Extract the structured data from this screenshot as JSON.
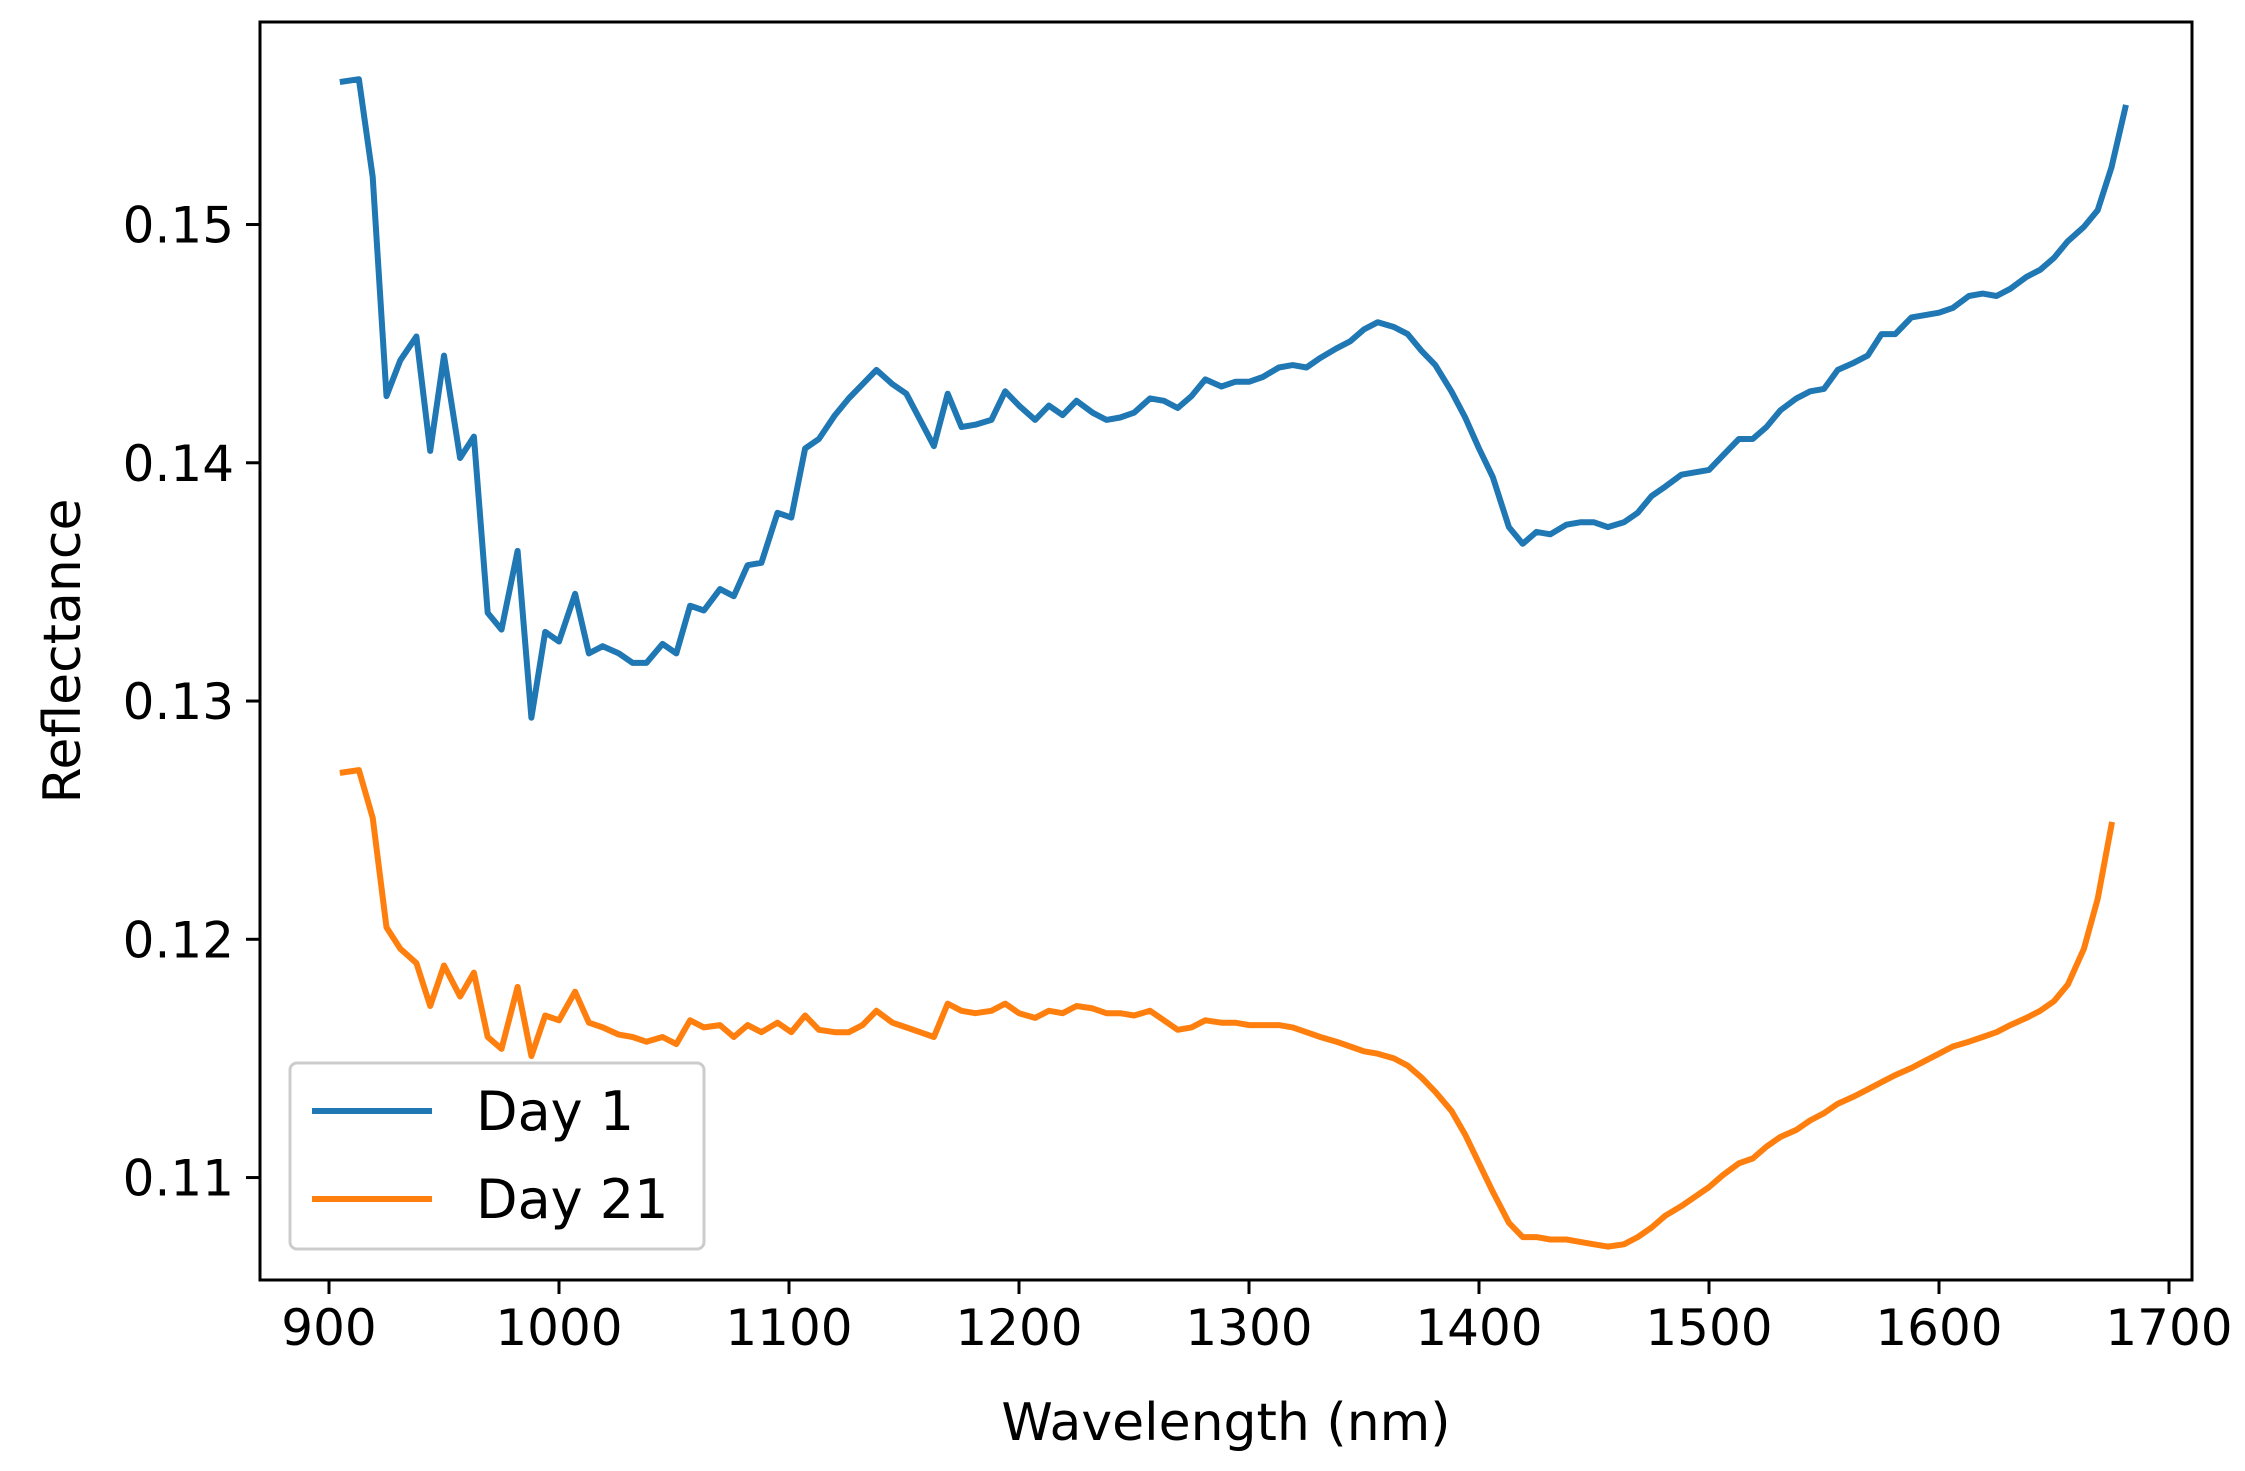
{
  "chart_data": {
    "type": "line",
    "title": "",
    "xlabel": "Wavelength (nm)",
    "ylabel": "Reflectance",
    "xlim": [
      870,
      1710
    ],
    "ylim": [
      0.1057,
      0.1585
    ],
    "xticks": [
      900,
      1000,
      1100,
      1200,
      1300,
      1400,
      1500,
      1600,
      1700
    ],
    "yticks": [
      0.11,
      0.12,
      0.13,
      0.14,
      0.15
    ],
    "xtick_labels": [
      "900",
      "1000",
      "1100",
      "1200",
      "1300",
      "1400",
      "1500",
      "1600",
      "1700"
    ],
    "ytick_labels": [
      "0.11",
      "0.12",
      "0.13",
      "0.14",
      "0.15"
    ],
    "grid": false,
    "legend_position": "lower-left",
    "series": [
      {
        "name": "Day 1",
        "color": "#1f77b4",
        "points": [
          [
            906,
            0.156
          ],
          [
            913,
            0.1561
          ],
          [
            919,
            0.152
          ],
          [
            925,
            0.1428
          ],
          [
            931,
            0.1443
          ],
          [
            938,
            0.1453
          ],
          [
            944,
            0.1405
          ],
          [
            950,
            0.1445
          ],
          [
            957,
            0.1402
          ],
          [
            963,
            0.1411
          ],
          [
            969,
            0.1337
          ],
          [
            975,
            0.133
          ],
          [
            982,
            0.1363
          ],
          [
            988,
            0.1293
          ],
          [
            994,
            0.1329
          ],
          [
            1000,
            0.1325
          ],
          [
            1007,
            0.1345
          ],
          [
            1013,
            0.132
          ],
          [
            1019,
            0.1323
          ],
          [
            1026,
            0.132
          ],
          [
            1032,
            0.1316
          ],
          [
            1038,
            0.1316
          ],
          [
            1045,
            0.1324
          ],
          [
            1051,
            0.132
          ],
          [
            1057,
            0.134
          ],
          [
            1063,
            0.1338
          ],
          [
            1070,
            0.1347
          ],
          [
            1076,
            0.1344
          ],
          [
            1082,
            0.1357
          ],
          [
            1088,
            0.1358
          ],
          [
            1095,
            0.1379
          ],
          [
            1101,
            0.1377
          ],
          [
            1107,
            0.1406
          ],
          [
            1113,
            0.141
          ],
          [
            1120,
            0.142
          ],
          [
            1126,
            0.1427
          ],
          [
            1132,
            0.1433
          ],
          [
            1138,
            0.1439
          ],
          [
            1145,
            0.1433
          ],
          [
            1151,
            0.1429
          ],
          [
            1157,
            0.1418
          ],
          [
            1163,
            0.1407
          ],
          [
            1169,
            0.1429
          ],
          [
            1175,
            0.1415
          ],
          [
            1181,
            0.1416
          ],
          [
            1188,
            0.1418
          ],
          [
            1194,
            0.143
          ],
          [
            1200,
            0.1424
          ],
          [
            1207,
            0.1418
          ],
          [
            1213,
            0.1424
          ],
          [
            1219,
            0.142
          ],
          [
            1225,
            0.1426
          ],
          [
            1232,
            0.1421
          ],
          [
            1238,
            0.1418
          ],
          [
            1244,
            0.1419
          ],
          [
            1250,
            0.1421
          ],
          [
            1257,
            0.1427
          ],
          [
            1263,
            0.1426
          ],
          [
            1269,
            0.1423
          ],
          [
            1275,
            0.1428
          ],
          [
            1281,
            0.1435
          ],
          [
            1288,
            0.1432
          ],
          [
            1294,
            0.1434
          ],
          [
            1300,
            0.1434
          ],
          [
            1306,
            0.1436
          ],
          [
            1313,
            0.144
          ],
          [
            1319,
            0.1441
          ],
          [
            1325,
            0.144
          ],
          [
            1331,
            0.1444
          ],
          [
            1338,
            0.1448
          ],
          [
            1344,
            0.1451
          ],
          [
            1350,
            0.1456
          ],
          [
            1356,
            0.1459
          ],
          [
            1363,
            0.1457
          ],
          [
            1369,
            0.1454
          ],
          [
            1375,
            0.1447
          ],
          [
            1381,
            0.1441
          ],
          [
            1388,
            0.143
          ],
          [
            1394,
            0.1419
          ],
          [
            1400,
            0.1406
          ],
          [
            1406,
            0.1394
          ],
          [
            1413,
            0.1373
          ],
          [
            1419,
            0.1366
          ],
          [
            1425,
            0.1371
          ],
          [
            1431,
            0.137
          ],
          [
            1438,
            0.1374
          ],
          [
            1444,
            0.1375
          ],
          [
            1450,
            0.1375
          ],
          [
            1456,
            0.1373
          ],
          [
            1463,
            0.1375
          ],
          [
            1469,
            0.1379
          ],
          [
            1475,
            0.1386
          ],
          [
            1481,
            0.139
          ],
          [
            1488,
            0.1395
          ],
          [
            1494,
            0.1396
          ],
          [
            1500,
            0.1397
          ],
          [
            1506,
            0.1403
          ],
          [
            1513,
            0.141
          ],
          [
            1519,
            0.141
          ],
          [
            1525,
            0.1415
          ],
          [
            1531,
            0.1422
          ],
          [
            1538,
            0.1427
          ],
          [
            1544,
            0.143
          ],
          [
            1550,
            0.1431
          ],
          [
            1556,
            0.1439
          ],
          [
            1563,
            0.1442
          ],
          [
            1569,
            0.1445
          ],
          [
            1575,
            0.1454
          ],
          [
            1581,
            0.1454
          ],
          [
            1588,
            0.1461
          ],
          [
            1594,
            0.1462
          ],
          [
            1600,
            0.1463
          ],
          [
            1606,
            0.1465
          ],
          [
            1613,
            0.147
          ],
          [
            1619,
            0.1471
          ],
          [
            1625,
            0.147
          ],
          [
            1631,
            0.1473
          ],
          [
            1638,
            0.1478
          ],
          [
            1644,
            0.1481
          ],
          [
            1650,
            0.1486
          ],
          [
            1656,
            0.1493
          ],
          [
            1663,
            0.1499
          ],
          [
            1669,
            0.1506
          ],
          [
            1675,
            0.1524
          ],
          [
            1681,
            0.1549
          ]
        ]
      },
      {
        "name": "Day 21",
        "color": "#ff7f0e",
        "points": [
          [
            906,
            0.127
          ],
          [
            913,
            0.1271
          ],
          [
            919,
            0.1251
          ],
          [
            925,
            0.1205
          ],
          [
            931,
            0.1196
          ],
          [
            938,
            0.119
          ],
          [
            944,
            0.1172
          ],
          [
            950,
            0.1189
          ],
          [
            957,
            0.1176
          ],
          [
            963,
            0.1186
          ],
          [
            969,
            0.1159
          ],
          [
            975,
            0.1154
          ],
          [
            982,
            0.118
          ],
          [
            988,
            0.1151
          ],
          [
            994,
            0.1168
          ],
          [
            1000,
            0.1166
          ],
          [
            1007,
            0.1178
          ],
          [
            1013,
            0.1165
          ],
          [
            1019,
            0.1163
          ],
          [
            1026,
            0.116
          ],
          [
            1032,
            0.1159
          ],
          [
            1038,
            0.1157
          ],
          [
            1045,
            0.1159
          ],
          [
            1051,
            0.1156
          ],
          [
            1057,
            0.1166
          ],
          [
            1063,
            0.1163
          ],
          [
            1070,
            0.1164
          ],
          [
            1076,
            0.1159
          ],
          [
            1082,
            0.1164
          ],
          [
            1088,
            0.1161
          ],
          [
            1095,
            0.1165
          ],
          [
            1101,
            0.1161
          ],
          [
            1107,
            0.1168
          ],
          [
            1113,
            0.1162
          ],
          [
            1120,
            0.1161
          ],
          [
            1126,
            0.1161
          ],
          [
            1132,
            0.1164
          ],
          [
            1138,
            0.117
          ],
          [
            1145,
            0.1165
          ],
          [
            1151,
            0.1163
          ],
          [
            1157,
            0.1161
          ],
          [
            1163,
            0.1159
          ],
          [
            1169,
            0.1173
          ],
          [
            1175,
            0.117
          ],
          [
            1181,
            0.1169
          ],
          [
            1188,
            0.117
          ],
          [
            1194,
            0.1173
          ],
          [
            1200,
            0.1169
          ],
          [
            1207,
            0.1167
          ],
          [
            1213,
            0.117
          ],
          [
            1219,
            0.1169
          ],
          [
            1225,
            0.1172
          ],
          [
            1232,
            0.1171
          ],
          [
            1238,
            0.1169
          ],
          [
            1244,
            0.1169
          ],
          [
            1250,
            0.1168
          ],
          [
            1257,
            0.117
          ],
          [
            1263,
            0.1166
          ],
          [
            1269,
            0.1162
          ],
          [
            1275,
            0.1163
          ],
          [
            1281,
            0.1166
          ],
          [
            1288,
            0.1165
          ],
          [
            1294,
            0.1165
          ],
          [
            1300,
            0.1164
          ],
          [
            1306,
            0.1164
          ],
          [
            1313,
            0.1164
          ],
          [
            1319,
            0.1163
          ],
          [
            1325,
            0.1161
          ],
          [
            1331,
            0.1159
          ],
          [
            1338,
            0.1157
          ],
          [
            1344,
            0.1155
          ],
          [
            1350,
            0.1153
          ],
          [
            1356,
            0.1152
          ],
          [
            1363,
            0.115
          ],
          [
            1369,
            0.1147
          ],
          [
            1375,
            0.1142
          ],
          [
            1381,
            0.1136
          ],
          [
            1388,
            0.1128
          ],
          [
            1394,
            0.1118
          ],
          [
            1400,
            0.1106
          ],
          [
            1406,
            0.1094
          ],
          [
            1413,
            0.1081
          ],
          [
            1419,
            0.1075
          ],
          [
            1425,
            0.1075
          ],
          [
            1431,
            0.1074
          ],
          [
            1438,
            0.1074
          ],
          [
            1444,
            0.1073
          ],
          [
            1450,
            0.1072
          ],
          [
            1456,
            0.1071
          ],
          [
            1463,
            0.1072
          ],
          [
            1469,
            0.1075
          ],
          [
            1475,
            0.1079
          ],
          [
            1481,
            0.1084
          ],
          [
            1488,
            0.1088
          ],
          [
            1494,
            0.1092
          ],
          [
            1500,
            0.1096
          ],
          [
            1506,
            0.1101
          ],
          [
            1513,
            0.1106
          ],
          [
            1519,
            0.1108
          ],
          [
            1525,
            0.1113
          ],
          [
            1531,
            0.1117
          ],
          [
            1538,
            0.112
          ],
          [
            1544,
            0.1124
          ],
          [
            1550,
            0.1127
          ],
          [
            1556,
            0.1131
          ],
          [
            1563,
            0.1134
          ],
          [
            1569,
            0.1137
          ],
          [
            1575,
            0.114
          ],
          [
            1581,
            0.1143
          ],
          [
            1588,
            0.1146
          ],
          [
            1594,
            0.1149
          ],
          [
            1600,
            0.1152
          ],
          [
            1606,
            0.1155
          ],
          [
            1613,
            0.1157
          ],
          [
            1619,
            0.1159
          ],
          [
            1625,
            0.1161
          ],
          [
            1631,
            0.1164
          ],
          [
            1638,
            0.1167
          ],
          [
            1644,
            0.117
          ],
          [
            1650,
            0.1174
          ],
          [
            1656,
            0.1181
          ],
          [
            1663,
            0.1196
          ],
          [
            1669,
            0.1217
          ],
          [
            1675,
            0.1248
          ]
        ]
      }
    ]
  }
}
